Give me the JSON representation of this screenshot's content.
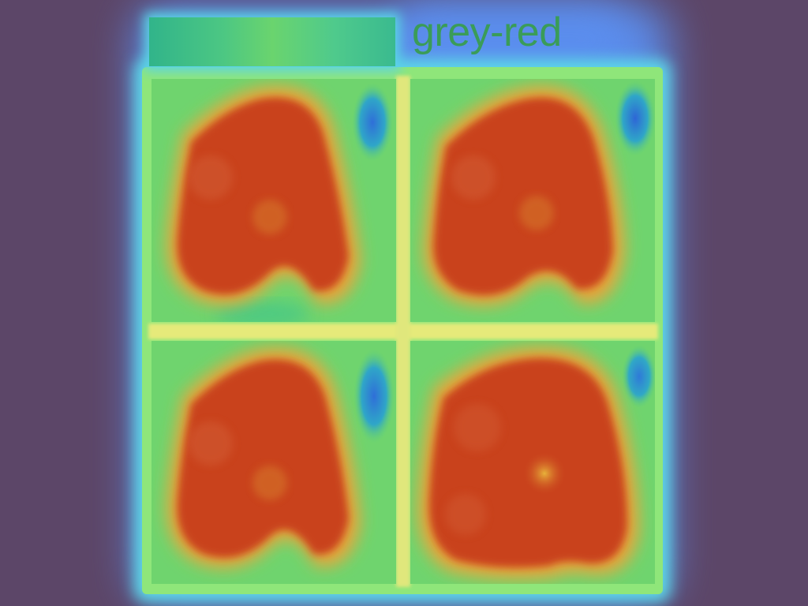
{
  "header": {
    "label": "grey-red"
  },
  "colors": {
    "background": "#5c4668",
    "glow": "#5b8ff0",
    "heat_hot": "#c8421f",
    "heat_warm": "#e0a23a",
    "heat_mid": "#78d66a",
    "heat_cool": "#2f7ad8"
  },
  "panels": [
    {
      "name": "panel-top-left"
    },
    {
      "name": "panel-top-right"
    },
    {
      "name": "panel-bottom-left"
    },
    {
      "name": "panel-bottom-right"
    }
  ]
}
